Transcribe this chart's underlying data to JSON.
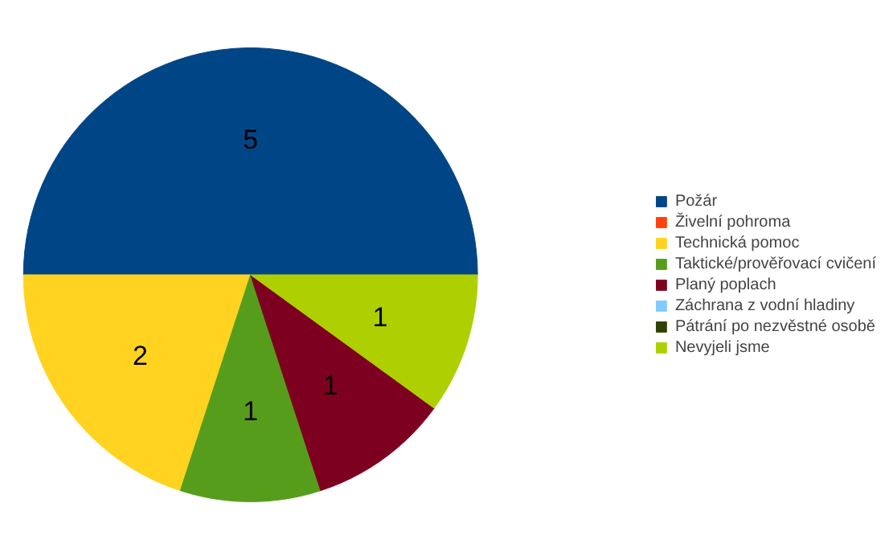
{
  "chart_data": {
    "type": "pie",
    "categories": [
      "Požár",
      "Živelní pohroma",
      "Technická pomoc",
      "Taktické/prověřovací cvičení",
      "Planý poplach",
      "Záchrana z vodní hladiny",
      "Pátrání po nezvěstné osobě",
      "Nevyjeli jsme"
    ],
    "values": [
      5,
      0,
      2,
      1,
      1,
      0,
      0,
      1
    ],
    "colors": [
      "#004586",
      "#ff420e",
      "#ffd320",
      "#579d1c",
      "#7e0021",
      "#83caff",
      "#314004",
      "#aecf00"
    ],
    "data_labels": true,
    "legend": "right"
  }
}
